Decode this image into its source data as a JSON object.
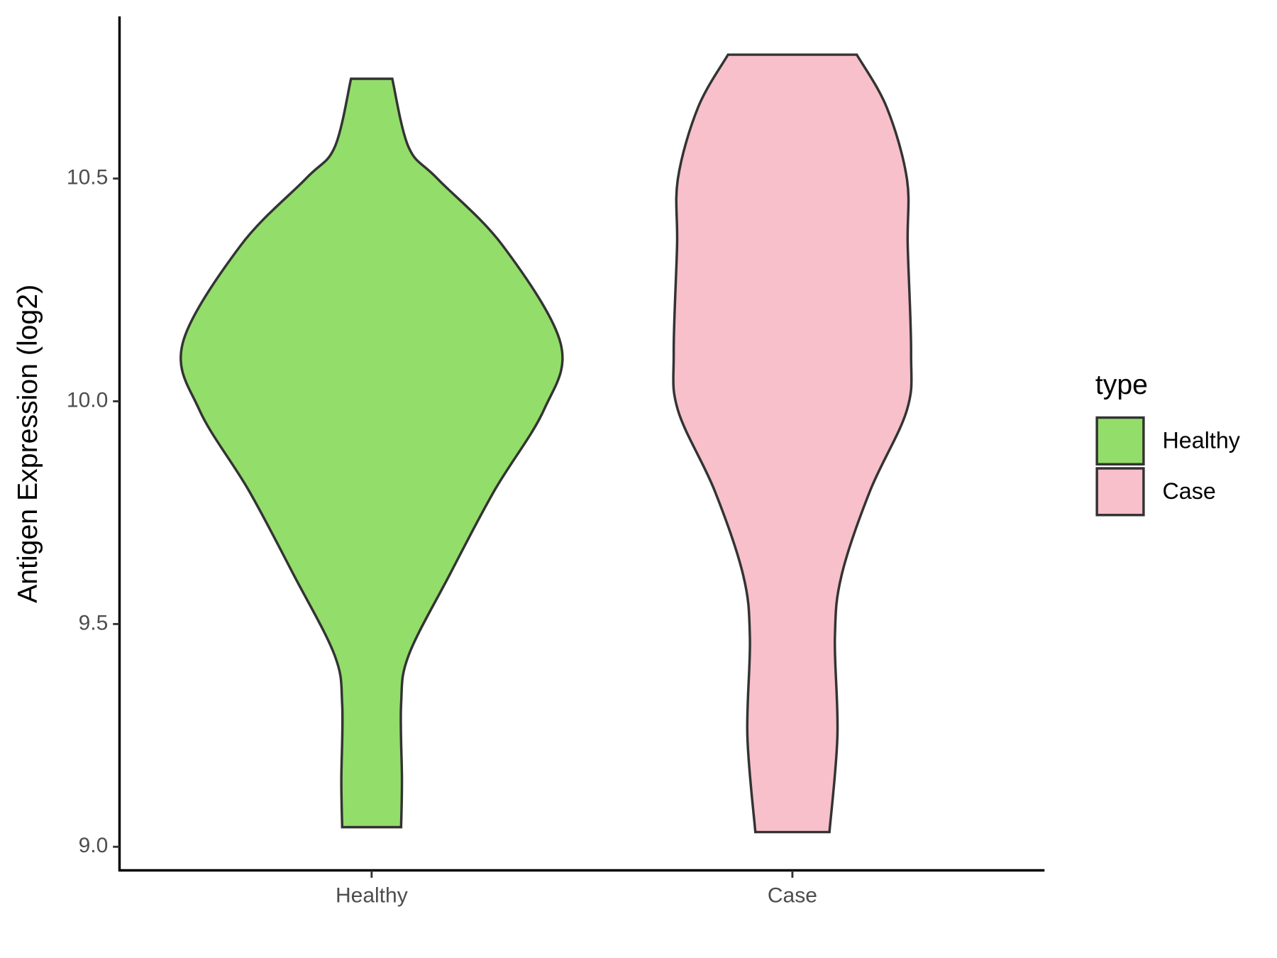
{
  "chart_data": {
    "type": "violin",
    "y_label": "Antigen Expression (log2)",
    "categories": [
      "Healthy",
      "Case"
    ],
    "series": [
      {
        "name": "Healthy",
        "color": "#93dd6a",
        "y": [
          10.724,
          10.57,
          10.5,
          10.35,
          10.13,
          9.98,
          9.8,
          9.61,
          9.43,
          9.32,
          9.15,
          9.044
        ],
        "width": [
          0.049,
          0.088,
          0.156,
          0.311,
          0.449,
          0.409,
          0.292,
          0.185,
          0.088,
          0.07,
          0.072,
          0.07
        ]
      },
      {
        "name": "Case",
        "color": "#f7c0cb",
        "y": [
          10.778,
          10.66,
          10.5,
          10.35,
          10.11,
          9.98,
          9.8,
          9.61,
          9.47,
          9.25,
          9.033
        ],
        "width": [
          0.153,
          0.224,
          0.272,
          0.274,
          0.282,
          0.272,
          0.185,
          0.117,
          0.101,
          0.107,
          0.088
        ]
      }
    ],
    "ylim": [
      8.947,
      10.864
    ],
    "yticks": [
      {
        "value": 9.0,
        "label": "9.0"
      },
      {
        "value": 9.5,
        "label": "9.5"
      },
      {
        "value": 10.0,
        "label": "10.0"
      },
      {
        "value": 10.5,
        "label": "10.5"
      }
    ],
    "legend_title": "type",
    "legend_position": "right"
  }
}
